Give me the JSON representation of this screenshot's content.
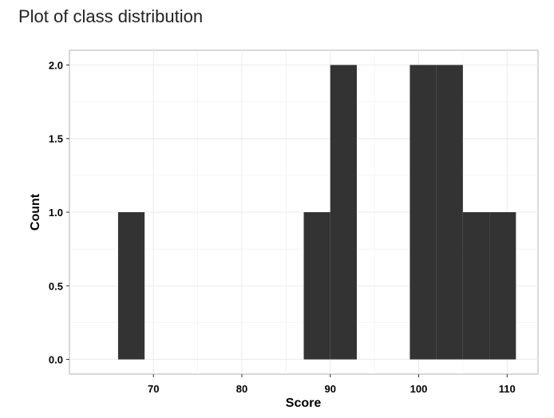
{
  "chart_data": {
    "type": "bar",
    "title": "Plot of class distribution",
    "xlabel": "Score",
    "ylabel": "Count",
    "xlim": [
      60.5,
      113.5
    ],
    "ylim": [
      -0.1,
      2.1
    ],
    "x_ticks": [
      70,
      80,
      90,
      100,
      110
    ],
    "x_tick_labels": [
      "70",
      "80",
      "90",
      "100",
      "110"
    ],
    "y_ticks": [
      0,
      0.5,
      1,
      1.5,
      2
    ],
    "y_tick_labels": [
      "0.0",
      "0.5",
      "1.0",
      "1.5",
      "2.0"
    ],
    "grid": true,
    "bin_width": 3,
    "bins": [
      {
        "start": 66,
        "end": 69,
        "count": 1
      },
      {
        "start": 87,
        "end": 90,
        "count": 1
      },
      {
        "start": 90,
        "end": 93,
        "count": 2
      },
      {
        "start": 99,
        "end": 102,
        "count": 2
      },
      {
        "start": 102,
        "end": 105,
        "count": 2
      },
      {
        "start": 105,
        "end": 108,
        "count": 1
      },
      {
        "start": 108,
        "end": 111,
        "count": 1
      }
    ],
    "bar_color": "#333333",
    "grid_color": "#ebebeb",
    "axis_color": "#b3b3b3"
  }
}
